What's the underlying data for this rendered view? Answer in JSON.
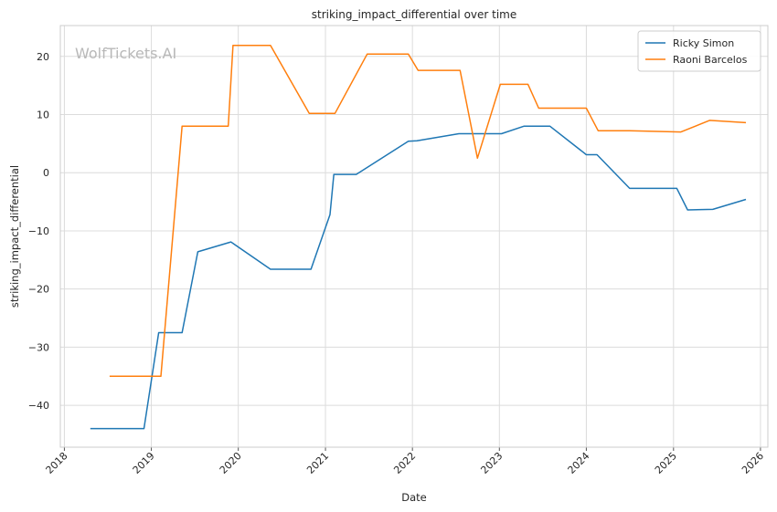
{
  "chart_data": {
    "type": "line",
    "title": "striking_impact_differential over time",
    "xlabel": "Date",
    "ylabel": "striking_impact_differential",
    "watermark": "WolfTickets.AI",
    "xlim": [
      "2017-12-15",
      "2026-02-01"
    ],
    "ylim": [
      -47.2,
      25.3
    ],
    "x_ticks": [
      "2018",
      "2019",
      "2020",
      "2021",
      "2022",
      "2023",
      "2024",
      "2025",
      "2026"
    ],
    "y_ticks": [
      -40,
      -30,
      -20,
      -10,
      0,
      10,
      20
    ],
    "grid": true,
    "legend_position": "top-right",
    "series": [
      {
        "name": "Ricky Simon",
        "color": "#1f77b4",
        "points": [
          [
            "2018-04-20",
            -44.0
          ],
          [
            "2018-12-01",
            -44.0
          ],
          [
            "2019-02-01",
            -27.5
          ],
          [
            "2019-05-10",
            -27.5
          ],
          [
            "2019-07-15",
            -13.6
          ],
          [
            "2019-12-01",
            -11.9
          ],
          [
            "2020-05-15",
            -16.6
          ],
          [
            "2020-11-01",
            -16.6
          ],
          [
            "2021-01-20",
            -7.2
          ],
          [
            "2021-02-05",
            -0.3
          ],
          [
            "2021-05-10",
            -0.3
          ],
          [
            "2021-12-15",
            5.4
          ],
          [
            "2022-01-20",
            5.5
          ],
          [
            "2022-07-15",
            6.7
          ],
          [
            "2023-01-10",
            6.7
          ],
          [
            "2023-04-15",
            8.0
          ],
          [
            "2023-08-01",
            8.0
          ],
          [
            "2024-01-01",
            3.1
          ],
          [
            "2024-02-15",
            3.1
          ],
          [
            "2024-07-01",
            -2.7
          ],
          [
            "2025-01-15",
            -2.7
          ],
          [
            "2025-03-01",
            -6.4
          ],
          [
            "2025-06-15",
            -6.3
          ],
          [
            "2025-11-01",
            -4.6
          ]
        ]
      },
      {
        "name": "Raoni Barcelos",
        "color": "#ff7f0e",
        "points": [
          [
            "2018-07-10",
            -35.0
          ],
          [
            "2019-02-10",
            -35.0
          ],
          [
            "2019-05-10",
            8.0
          ],
          [
            "2019-11-20",
            8.0
          ],
          [
            "2019-12-10",
            21.9
          ],
          [
            "2020-05-15",
            21.9
          ],
          [
            "2020-10-25",
            10.2
          ],
          [
            "2021-02-10",
            10.2
          ],
          [
            "2021-06-25",
            20.4
          ],
          [
            "2021-12-15",
            20.4
          ],
          [
            "2022-01-25",
            17.6
          ],
          [
            "2022-07-20",
            17.6
          ],
          [
            "2022-10-01",
            2.5
          ],
          [
            "2023-01-05",
            15.2
          ],
          [
            "2023-05-01",
            15.2
          ],
          [
            "2023-06-15",
            11.1
          ],
          [
            "2024-01-01",
            11.1
          ],
          [
            "2024-02-20",
            7.2
          ],
          [
            "2024-07-01",
            7.2
          ],
          [
            "2025-02-01",
            7.0
          ],
          [
            "2025-06-01",
            9.0
          ],
          [
            "2025-11-01",
            8.6
          ]
        ]
      }
    ]
  }
}
